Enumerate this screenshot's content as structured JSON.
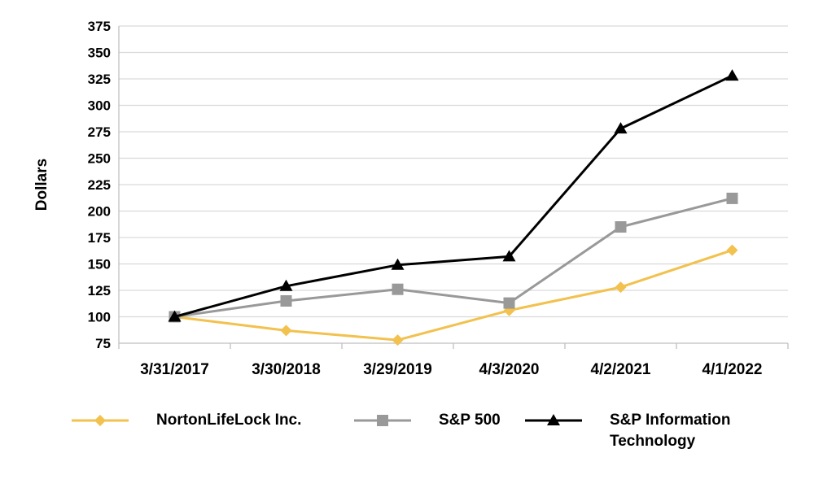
{
  "chart_data": {
    "type": "line",
    "ylabel": "Dollars",
    "xlabel": "",
    "ylim": [
      75,
      375
    ],
    "yticks": [
      "75",
      "100",
      "125",
      "150",
      "175",
      "200",
      "225",
      "250",
      "275",
      "300",
      "325",
      "350",
      "375"
    ],
    "categories": [
      "3/31/2017",
      "3/30/2018",
      "3/29/2019",
      "4/3/2020",
      "4/2/2021",
      "4/1/2022"
    ],
    "grid": true,
    "legend_position": "bottom",
    "series": [
      {
        "name": "NortonLifeLock Inc.",
        "color": "#F2C14E",
        "marker": "diamond",
        "values": [
          100,
          87,
          78,
          106,
          128,
          163
        ]
      },
      {
        "name": "S&P 500",
        "color": "#999999",
        "marker": "square",
        "values": [
          100,
          115,
          126,
          113,
          185,
          212
        ]
      },
      {
        "name": "S&P Information Technology",
        "color": "#000000",
        "marker": "triangle",
        "values": [
          100,
          129,
          149,
          157,
          278,
          328
        ]
      }
    ]
  }
}
